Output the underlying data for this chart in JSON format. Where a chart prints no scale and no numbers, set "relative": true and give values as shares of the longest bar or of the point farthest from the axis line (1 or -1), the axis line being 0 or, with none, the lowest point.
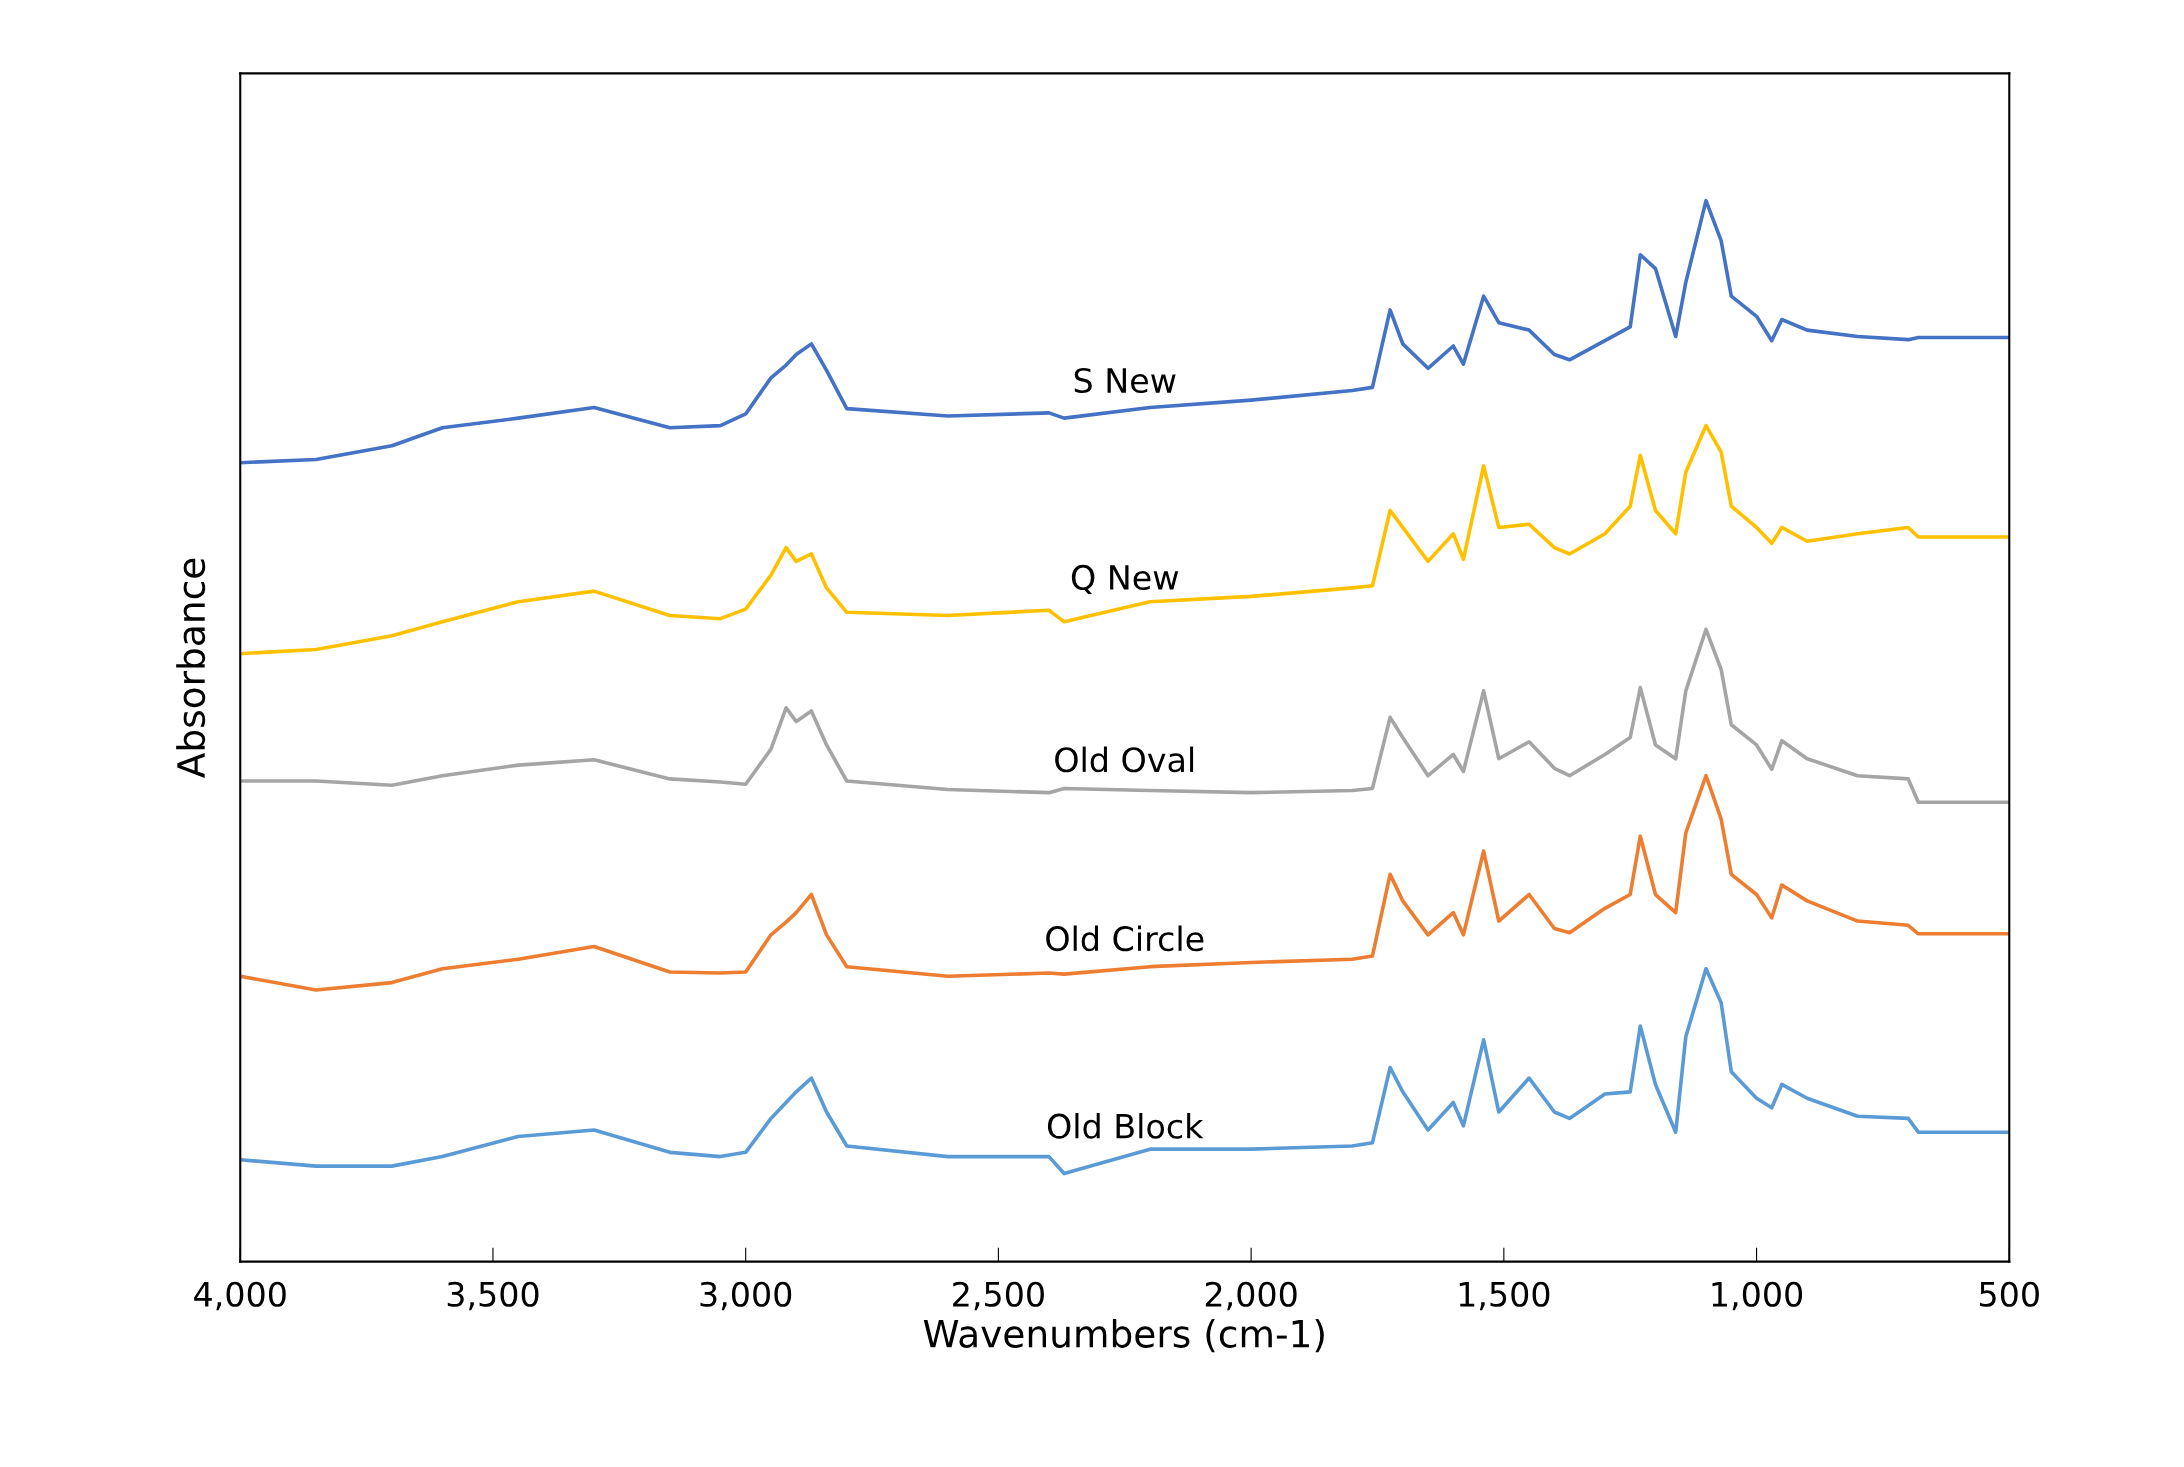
{
  "chart_data": {
    "type": "line",
    "relative": true,
    "xlabel": "Wavenumbers (cm-1)",
    "ylabel": "Absorbance",
    "xlim": [
      4000,
      500
    ],
    "xticks": [
      {
        "value": 4000,
        "label": "4,000"
      },
      {
        "value": 3500,
        "label": "3,500"
      },
      {
        "value": 3000,
        "label": "3,000"
      },
      {
        "value": 2500,
        "label": "2,500"
      },
      {
        "value": 2000,
        "label": "2,000"
      },
      {
        "value": 1500,
        "label": "1,500"
      },
      {
        "value": 1000,
        "label": "1,000"
      },
      {
        "value": 500,
        "label": "500"
      }
    ],
    "tick_labels": "x",
    "grid": false,
    "legend": false,
    "marker": "none",
    "line_style": "solid",
    "x": [
      4000,
      3850,
      3700,
      3600,
      3450,
      3300,
      3150,
      3050,
      3000,
      2950,
      2920,
      2900,
      2870,
      2840,
      2800,
      2600,
      2400,
      2370,
      2200,
      2000,
      1800,
      1760,
      1725,
      1700,
      1650,
      1600,
      1580,
      1540,
      1510,
      1450,
      1400,
      1370,
      1300,
      1250,
      1230,
      1200,
      1160,
      1140,
      1100,
      1070,
      1050,
      1000,
      970,
      950,
      900,
      800,
      700,
      680,
      500
    ],
    "series": [
      {
        "name": "S New",
        "color": "#4472c4",
        "values": [
          0.753,
          0.756,
          0.769,
          0.786,
          0.795,
          0.805,
          0.786,
          0.788,
          0.799,
          0.833,
          0.845,
          0.855,
          0.865,
          0.84,
          0.804,
          0.797,
          0.8,
          0.795,
          0.805,
          0.812,
          0.821,
          0.824,
          0.897,
          0.865,
          0.842,
          0.863,
          0.846,
          0.91,
          0.885,
          0.878,
          0.855,
          0.85,
          0.868,
          0.881,
          0.949,
          0.936,
          0.872,
          0.923,
          1.0,
          0.962,
          0.91,
          0.891,
          0.868,
          0.888,
          0.878,
          0.872,
          0.869,
          0.871,
          0.871
        ]
      },
      {
        "name": "Q New",
        "color": "#ffc000",
        "values": [
          0.573,
          0.577,
          0.59,
          0.603,
          0.622,
          0.632,
          0.609,
          0.606,
          0.615,
          0.647,
          0.673,
          0.66,
          0.667,
          0.635,
          0.612,
          0.609,
          0.614,
          0.603,
          0.622,
          0.627,
          0.635,
          0.637,
          0.708,
          0.692,
          0.66,
          0.686,
          0.662,
          0.75,
          0.692,
          0.695,
          0.673,
          0.667,
          0.686,
          0.712,
          0.76,
          0.708,
          0.686,
          0.744,
          0.788,
          0.763,
          0.712,
          0.692,
          0.677,
          0.692,
          0.679,
          0.686,
          0.692,
          0.683,
          0.683
        ]
      },
      {
        "name": "Old Oval",
        "color": "#a5a5a5",
        "values": [
          0.453,
          0.453,
          0.449,
          0.458,
          0.468,
          0.473,
          0.455,
          0.452,
          0.45,
          0.483,
          0.522,
          0.509,
          0.519,
          0.487,
          0.453,
          0.445,
          0.442,
          0.446,
          0.444,
          0.442,
          0.444,
          0.446,
          0.513,
          0.494,
          0.458,
          0.478,
          0.462,
          0.538,
          0.474,
          0.49,
          0.465,
          0.458,
          0.478,
          0.494,
          0.541,
          0.487,
          0.474,
          0.538,
          0.596,
          0.558,
          0.506,
          0.487,
          0.464,
          0.491,
          0.474,
          0.458,
          0.455,
          0.433,
          0.433
        ]
      },
      {
        "name": "Old Circle",
        "color": "#ed7d31",
        "values": [
          0.269,
          0.256,
          0.263,
          0.276,
          0.285,
          0.297,
          0.273,
          0.272,
          0.273,
          0.308,
          0.32,
          0.329,
          0.346,
          0.308,
          0.278,
          0.269,
          0.272,
          0.271,
          0.278,
          0.282,
          0.285,
          0.288,
          0.365,
          0.34,
          0.308,
          0.329,
          0.308,
          0.387,
          0.321,
          0.346,
          0.314,
          0.31,
          0.333,
          0.346,
          0.401,
          0.346,
          0.329,
          0.404,
          0.458,
          0.417,
          0.365,
          0.346,
          0.324,
          0.355,
          0.34,
          0.321,
          0.317,
          0.309,
          0.309
        ]
      },
      {
        "name": "Old Block",
        "color": "#5b9bd5",
        "values": [
          0.096,
          0.09,
          0.09,
          0.099,
          0.118,
          0.124,
          0.103,
          0.099,
          0.103,
          0.135,
          0.15,
          0.16,
          0.173,
          0.141,
          0.109,
          0.099,
          0.099,
          0.083,
          0.106,
          0.106,
          0.109,
          0.112,
          0.183,
          0.16,
          0.124,
          0.15,
          0.128,
          0.209,
          0.141,
          0.173,
          0.141,
          0.135,
          0.158,
          0.16,
          0.222,
          0.167,
          0.122,
          0.212,
          0.276,
          0.244,
          0.179,
          0.154,
          0.145,
          0.167,
          0.154,
          0.137,
          0.135,
          0.122,
          0.122
        ]
      }
    ]
  }
}
